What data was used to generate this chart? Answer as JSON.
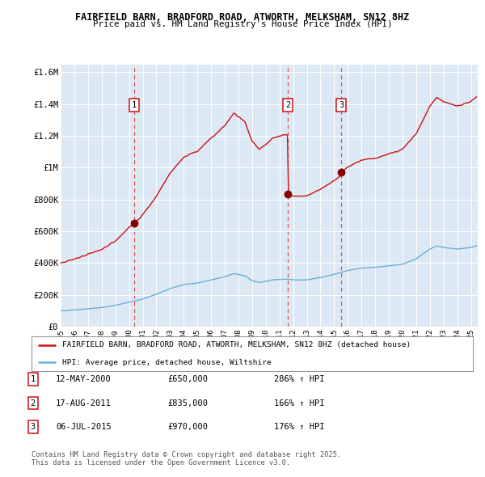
{
  "title": "FAIRFIELD BARN, BRADFORD ROAD, ATWORTH, MELKSHAM, SN12 8HZ",
  "subtitle": "Price paid vs. HM Land Registry's House Price Index (HPI)",
  "background_color": "#dce9f5",
  "plot_bg_color": "#dce9f5",
  "hpi_color": "#6baed6",
  "price_color": "#cc1111",
  "sale_marker_color": "#880000",
  "dashed_line_color": "#dd4444",
  "sale_events": [
    {
      "label": "1",
      "date_year": 2000.36,
      "price": 650000
    },
    {
      "label": "2",
      "date_year": 2011.62,
      "price": 835000
    },
    {
      "label": "3",
      "date_year": 2015.51,
      "price": 970000
    }
  ],
  "legend_entries": [
    "FAIRFIELD BARN, BRADFORD ROAD, ATWORTH, MELKSHAM, SN12 8HZ (detached house)",
    "HPI: Average price, detached house, Wiltshire"
  ],
  "table_rows": [
    {
      "num": "1",
      "date": "12-MAY-2000",
      "price": "£650,000",
      "hpi": "286% ↑ HPI"
    },
    {
      "num": "2",
      "date": "17-AUG-2011",
      "price": "£835,000",
      "hpi": "166% ↑ HPI"
    },
    {
      "num": "3",
      "date": "06-JUL-2015",
      "price": "£970,000",
      "hpi": "176% ↑ HPI"
    }
  ],
  "footer": "Contains HM Land Registry data © Crown copyright and database right 2025.\nThis data is licensed under the Open Government Licence v3.0.",
  "ylim": [
    0,
    1650000
  ],
  "yticks": [
    0,
    200000,
    400000,
    600000,
    800000,
    1000000,
    1200000,
    1400000,
    1600000
  ],
  "ytick_labels": [
    "£0",
    "£200K",
    "£400K",
    "£600K",
    "£800K",
    "£1M",
    "£1.2M",
    "£1.4M",
    "£1.6M"
  ],
  "xlim_start": 1995.0,
  "xlim_end": 2025.5
}
